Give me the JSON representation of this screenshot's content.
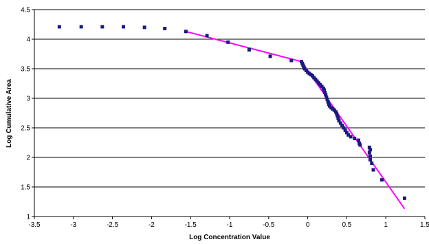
{
  "chart_data": {
    "type": "scatter",
    "title": "",
    "xlabel": "Log Concentration Value",
    "ylabel": "Log Cumulative Area",
    "xlim": [
      -3.5,
      1.5
    ],
    "ylim": [
      1,
      4.5
    ],
    "x_ticks": [
      "-3.5",
      "-3",
      "-2.5",
      "-2",
      "-1.5",
      "-1",
      "-0.5",
      "0",
      "0.5",
      "1",
      "1.5"
    ],
    "y_ticks": [
      "1",
      "1.5",
      "2",
      "2.5",
      "3",
      "3.5",
      "4",
      "4.5"
    ],
    "x_tick_values": [
      -3.5,
      -3,
      -2.5,
      -2,
      -1.5,
      -1,
      -0.5,
      0,
      0.5,
      1,
      1.5
    ],
    "y_tick_values": [
      1,
      1.5,
      2,
      2.5,
      3,
      3.5,
      4,
      4.5
    ],
    "grid": "horizontal",
    "legend": "none",
    "marker_color": "#1a1a80",
    "line_color": "#ff00ff",
    "series": [
      {
        "type": "scatter",
        "points": [
          [
            -3.18,
            4.21
          ],
          [
            -2.9,
            4.21
          ],
          [
            -2.63,
            4.21
          ],
          [
            -2.36,
            4.21
          ],
          [
            -2.09,
            4.2
          ],
          [
            -1.83,
            4.18
          ],
          [
            -1.56,
            4.13
          ],
          [
            -1.29,
            4.06
          ],
          [
            -1.02,
            3.95
          ],
          [
            -0.75,
            3.82
          ],
          [
            -0.48,
            3.71
          ],
          [
            -0.21,
            3.64
          ],
          [
            -0.08,
            3.62
          ],
          [
            -0.07,
            3.59
          ],
          [
            -0.06,
            3.56
          ],
          [
            -0.05,
            3.53
          ],
          [
            -0.04,
            3.5
          ],
          [
            -0.02,
            3.47
          ],
          [
            0.0,
            3.44
          ],
          [
            0.02,
            3.42
          ],
          [
            0.04,
            3.4
          ],
          [
            0.06,
            3.38
          ],
          [
            0.08,
            3.35
          ],
          [
            0.1,
            3.32
          ],
          [
            0.12,
            3.29
          ],
          [
            0.14,
            3.26
          ],
          [
            0.16,
            3.23
          ],
          [
            0.18,
            3.2
          ],
          [
            0.2,
            3.17
          ],
          [
            0.21,
            3.14
          ],
          [
            0.22,
            3.1
          ],
          [
            0.23,
            3.06
          ],
          [
            0.24,
            3.02
          ],
          [
            0.25,
            2.98
          ],
          [
            0.26,
            2.94
          ],
          [
            0.27,
            2.9
          ],
          [
            0.28,
            2.87
          ],
          [
            0.3,
            2.84
          ],
          [
            0.32,
            2.82
          ],
          [
            0.34,
            2.8
          ],
          [
            0.36,
            2.77
          ],
          [
            0.37,
            2.74
          ],
          [
            0.38,
            2.7
          ],
          [
            0.39,
            2.66
          ],
          [
            0.4,
            2.62
          ],
          [
            0.42,
            2.58
          ],
          [
            0.44,
            2.54
          ],
          [
            0.46,
            2.5
          ],
          [
            0.48,
            2.46
          ],
          [
            0.5,
            2.42
          ],
          [
            0.52,
            2.38
          ],
          [
            0.55,
            2.35
          ],
          [
            0.6,
            2.32
          ],
          [
            0.65,
            2.29
          ],
          [
            0.66,
            2.24
          ],
          [
            0.67,
            2.21
          ],
          [
            0.79,
            2.17
          ],
          [
            0.8,
            2.13
          ],
          [
            0.79,
            2.08
          ],
          [
            0.8,
            2.02
          ],
          [
            0.8,
            1.96
          ],
          [
            0.82,
            1.9
          ],
          [
            0.84,
            1.79
          ],
          [
            0.95,
            1.62
          ],
          [
            1.24,
            1.31
          ]
        ]
      },
      {
        "type": "line",
        "points": [
          [
            -1.56,
            4.13
          ],
          [
            -0.08,
            3.62
          ]
        ]
      },
      {
        "type": "line",
        "points": [
          [
            -0.08,
            3.62
          ],
          [
            1.24,
            1.13
          ]
        ]
      }
    ]
  }
}
